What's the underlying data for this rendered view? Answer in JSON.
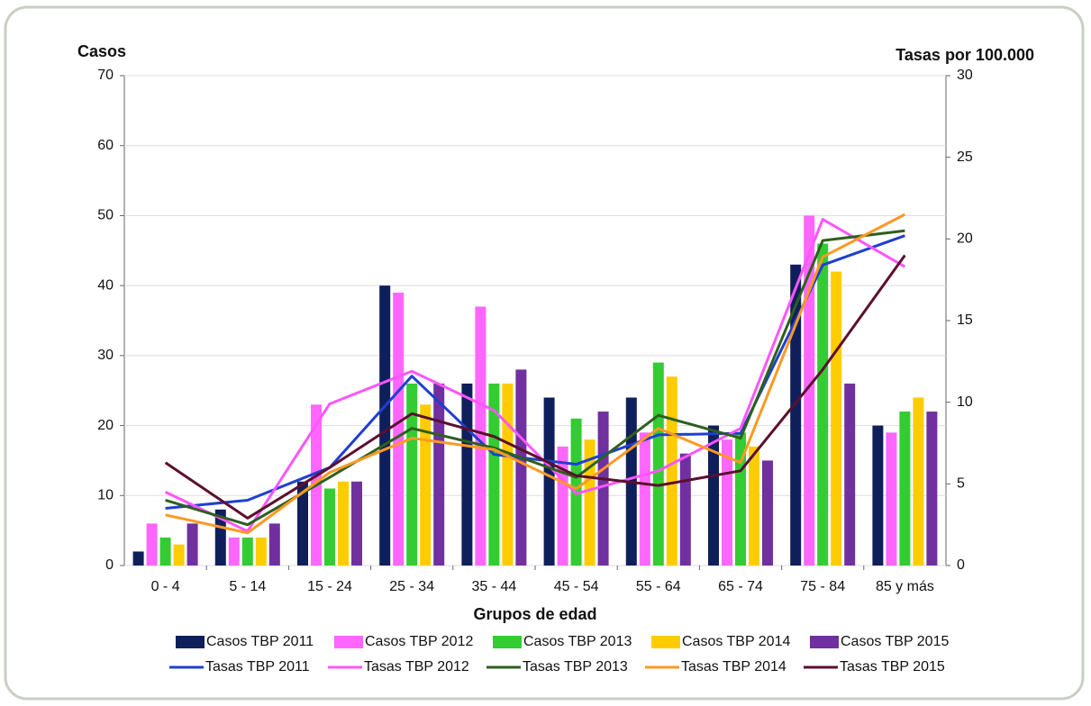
{
  "chart_data": {
    "type": "bar",
    "y_label": "Casos",
    "y2_label": "Tasas por 100.000",
    "x_label": "Grupos de edad",
    "categories": [
      "0 - 4",
      "5 - 14",
      "15 - 24",
      "25 - 34",
      "35 - 44",
      "45 - 54",
      "55 - 64",
      "65 - 74",
      "75 - 84",
      "85 y más"
    ],
    "ylim": [
      0,
      70
    ],
    "yticks": [
      0,
      10,
      20,
      30,
      40,
      50,
      60,
      70
    ],
    "y2lim": [
      0,
      30
    ],
    "y2ticks": [
      0,
      5,
      10,
      15,
      20,
      25,
      30
    ],
    "grid": true,
    "legend": "bottom",
    "series": [
      {
        "name": "Casos TBP 2011",
        "type": "bar",
        "color": "#0f1f5c",
        "values": [
          2,
          8,
          12,
          40,
          26,
          24,
          24,
          20,
          43,
          20
        ]
      },
      {
        "name": "Casos TBP 2012",
        "type": "bar",
        "color": "#ff66ff",
        "values": [
          6,
          4,
          23,
          39,
          37,
          17,
          19,
          18,
          50,
          19
        ]
      },
      {
        "name": "Casos TBP 2013",
        "type": "bar",
        "color": "#33cc33",
        "values": [
          4,
          4,
          11,
          26,
          26,
          21,
          29,
          19,
          46,
          22
        ]
      },
      {
        "name": "Casos TBP 2014",
        "type": "bar",
        "color": "#ffcc00",
        "values": [
          3,
          4,
          12,
          23,
          26,
          18,
          27,
          17,
          42,
          24
        ]
      },
      {
        "name": "Casos TBP 2015",
        "type": "bar",
        "color": "#7030a0",
        "values": [
          6,
          6,
          12,
          26,
          28,
          22,
          16,
          15,
          26,
          22
        ]
      },
      {
        "name": "Tasas TBP 2011",
        "type": "line",
        "axis": "y2",
        "color": "#1f3fd0",
        "values": [
          3.5,
          4.0,
          6.0,
          11.6,
          6.8,
          6.2,
          8.0,
          8.1,
          18.4,
          20.2
        ]
      },
      {
        "name": "Tasas TBP 2012",
        "type": "line",
        "axis": "y2",
        "color": "#ff55ff",
        "values": [
          4.5,
          2.1,
          9.9,
          11.9,
          9.5,
          4.4,
          5.8,
          8.4,
          21.2,
          18.3
        ]
      },
      {
        "name": "Tasas TBP 2013",
        "type": "line",
        "axis": "y2",
        "color": "#2e5f1f",
        "values": [
          4.0,
          2.5,
          5.4,
          8.4,
          7.2,
          5.4,
          9.2,
          7.8,
          19.9,
          20.5
        ]
      },
      {
        "name": "Tasas TBP 2014",
        "type": "line",
        "axis": "y2",
        "color": "#ff9922",
        "values": [
          3.1,
          2.0,
          5.7,
          7.8,
          7.1,
          4.7,
          8.4,
          6.3,
          18.9,
          21.5
        ]
      },
      {
        "name": "Tasas TBP 2015",
        "type": "line",
        "axis": "y2",
        "color": "#5c0f2e",
        "values": [
          6.3,
          2.9,
          6.0,
          9.3,
          7.9,
          5.5,
          4.9,
          5.8,
          12.0,
          19.0
        ]
      }
    ]
  }
}
